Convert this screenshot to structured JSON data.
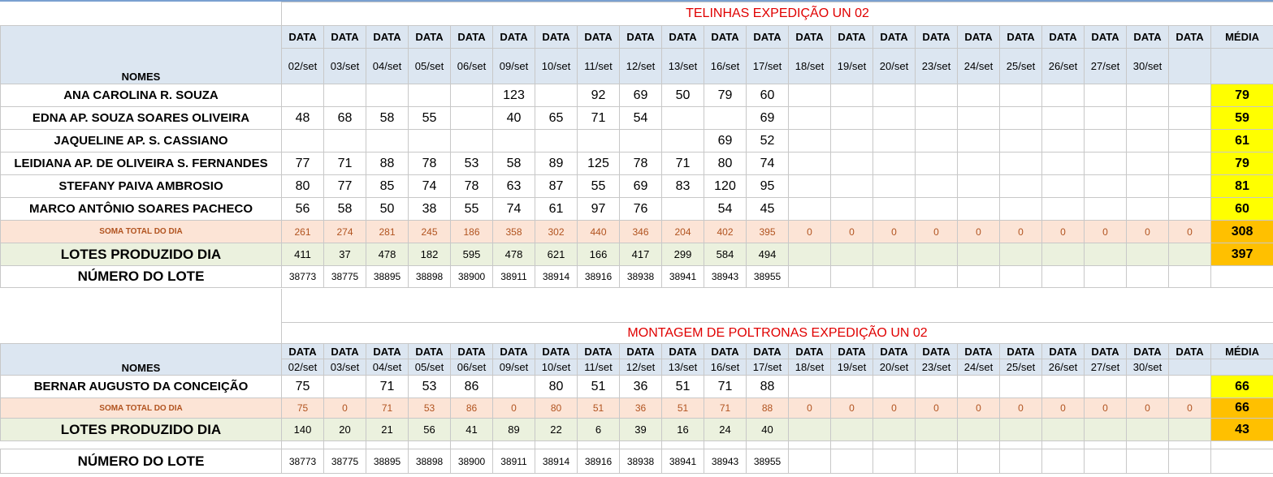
{
  "telinhas": {
    "title": "TELINHAS EXPEDIÇÃO UN 02",
    "nomes_label": "NOMES",
    "data_label": "DATA",
    "media_label": "MÉDIA",
    "dates": [
      "02/set",
      "03/set",
      "04/set",
      "05/set",
      "06/set",
      "09/set",
      "10/set",
      "11/set",
      "12/set",
      "13/set",
      "16/set",
      "17/set",
      "18/set",
      "19/set",
      "20/set",
      "23/set",
      "24/set",
      "25/set",
      "26/set",
      "27/set",
      "30/set",
      ""
    ],
    "people": [
      {
        "name": "ANA CAROLINA R. SOUZA",
        "values": [
          "",
          "",
          "",
          "",
          "",
          "123",
          "",
          "92",
          "69",
          "50",
          "79",
          "60",
          "",
          "",
          "",
          "",
          "",
          "",
          "",
          "",
          "",
          ""
        ],
        "media": "79"
      },
      {
        "name": "EDNA AP. SOUZA SOARES OLIVEIRA",
        "values": [
          "48",
          "68",
          "58",
          "55",
          "",
          "40",
          "65",
          "71",
          "54",
          "",
          "",
          "69",
          "",
          "",
          "",
          "",
          "",
          "",
          "",
          "",
          "",
          ""
        ],
        "media": "59"
      },
      {
        "name": "JAQUELINE AP.  S. CASSIANO",
        "values": [
          "",
          "",
          "",
          "",
          "",
          "",
          "",
          "",
          "",
          "",
          "69",
          "52",
          "",
          "",
          "",
          "",
          "",
          "",
          "",
          "",
          "",
          ""
        ],
        "media": "61"
      },
      {
        "name": "LEIDIANA AP. DE OLIVEIRA S. FERNANDES",
        "values": [
          "77",
          "71",
          "88",
          "78",
          "53",
          "58",
          "89",
          "125",
          "78",
          "71",
          "80",
          "74",
          "",
          "",
          "",
          "",
          "",
          "",
          "",
          "",
          "",
          ""
        ],
        "media": "79"
      },
      {
        "name": "STEFANY PAIVA AMBROSIO",
        "values": [
          "80",
          "77",
          "85",
          "74",
          "78",
          "63",
          "87",
          "55",
          "69",
          "83",
          "120",
          "95",
          "",
          "",
          "",
          "",
          "",
          "",
          "",
          "",
          "",
          ""
        ],
        "media": "81"
      },
      {
        "name": "MARCO ANTÔNIO SOARES PACHECO",
        "values": [
          "56",
          "58",
          "50",
          "38",
          "55",
          "74",
          "61",
          "97",
          "76",
          "",
          "54",
          "45",
          "",
          "",
          "",
          "",
          "",
          "",
          "",
          "",
          "",
          ""
        ],
        "media": "60"
      }
    ],
    "soma": {
      "label": "SOMA TOTAL DO DIA",
      "values": [
        "261",
        "274",
        "281",
        "245",
        "186",
        "358",
        "302",
        "440",
        "346",
        "204",
        "402",
        "395",
        "0",
        "0",
        "0",
        "0",
        "0",
        "0",
        "0",
        "0",
        "0",
        "0"
      ],
      "media": "308"
    },
    "lotes": {
      "label": "LOTES PRODUZIDO DIA",
      "values": [
        "411",
        "37",
        "478",
        "182",
        "595",
        "478",
        "621",
        "166",
        "417",
        "299",
        "584",
        "494",
        "",
        "",
        "",
        "",
        "",
        "",
        "",
        "",
        "",
        ""
      ],
      "media": "397"
    },
    "numero": {
      "label": "NÚMERO DO LOTE",
      "values": [
        "38773",
        "38775",
        "38895",
        "38898",
        "38900",
        "38911",
        "38914",
        "38916",
        "38938",
        "38941",
        "38943",
        "38955",
        "",
        "",
        "",
        "",
        "",
        "",
        "",
        "",
        "",
        ""
      ]
    }
  },
  "montagem": {
    "title": "MONTAGEM DE POLTRONAS EXPEDIÇÃO UN 02",
    "nomes_label": "NOMES",
    "data_label": "DATA",
    "media_label": "MÉDIA",
    "dates": [
      "02/set",
      "03/set",
      "04/set",
      "05/set",
      "06/set",
      "09/set",
      "10/set",
      "11/set",
      "12/set",
      "13/set",
      "16/set",
      "17/set",
      "18/set",
      "19/set",
      "20/set",
      "23/set",
      "24/set",
      "25/set",
      "26/set",
      "27/set",
      "30/set",
      ""
    ],
    "people": [
      {
        "name": "BERNAR AUGUSTO DA CONCEIÇÃO",
        "values": [
          "75",
          "",
          "71",
          "53",
          "86",
          "",
          "80",
          "51",
          "36",
          "51",
          "71",
          "88",
          "",
          "",
          "",
          "",
          "",
          "",
          "",
          "",
          "",
          ""
        ],
        "media": "66"
      }
    ],
    "soma": {
      "label": "SOMA TOTAL DO DIA",
      "values": [
        "75",
        "0",
        "71",
        "53",
        "86",
        "0",
        "80",
        "51",
        "36",
        "51",
        "71",
        "88",
        "0",
        "0",
        "0",
        "0",
        "0",
        "0",
        "0",
        "0",
        "0",
        "0"
      ],
      "media": "66"
    },
    "lotes": {
      "label": "LOTES PRODUZIDO DIA",
      "values": [
        "140",
        "20",
        "21",
        "56",
        "41",
        "89",
        "22",
        "6",
        "39",
        "16",
        "24",
        "40",
        "",
        "",
        "",
        "",
        "",
        "",
        "",
        "",
        "",
        ""
      ],
      "media": "43"
    },
    "numero": {
      "label": "NÚMERO DO LOTE",
      "values": [
        "38773",
        "38775",
        "38895",
        "38898",
        "38900",
        "38911",
        "38914",
        "38916",
        "38938",
        "38941",
        "38943",
        "38955",
        "",
        "",
        "",
        "",
        "",
        "",
        "",
        "",
        "",
        ""
      ]
    }
  }
}
